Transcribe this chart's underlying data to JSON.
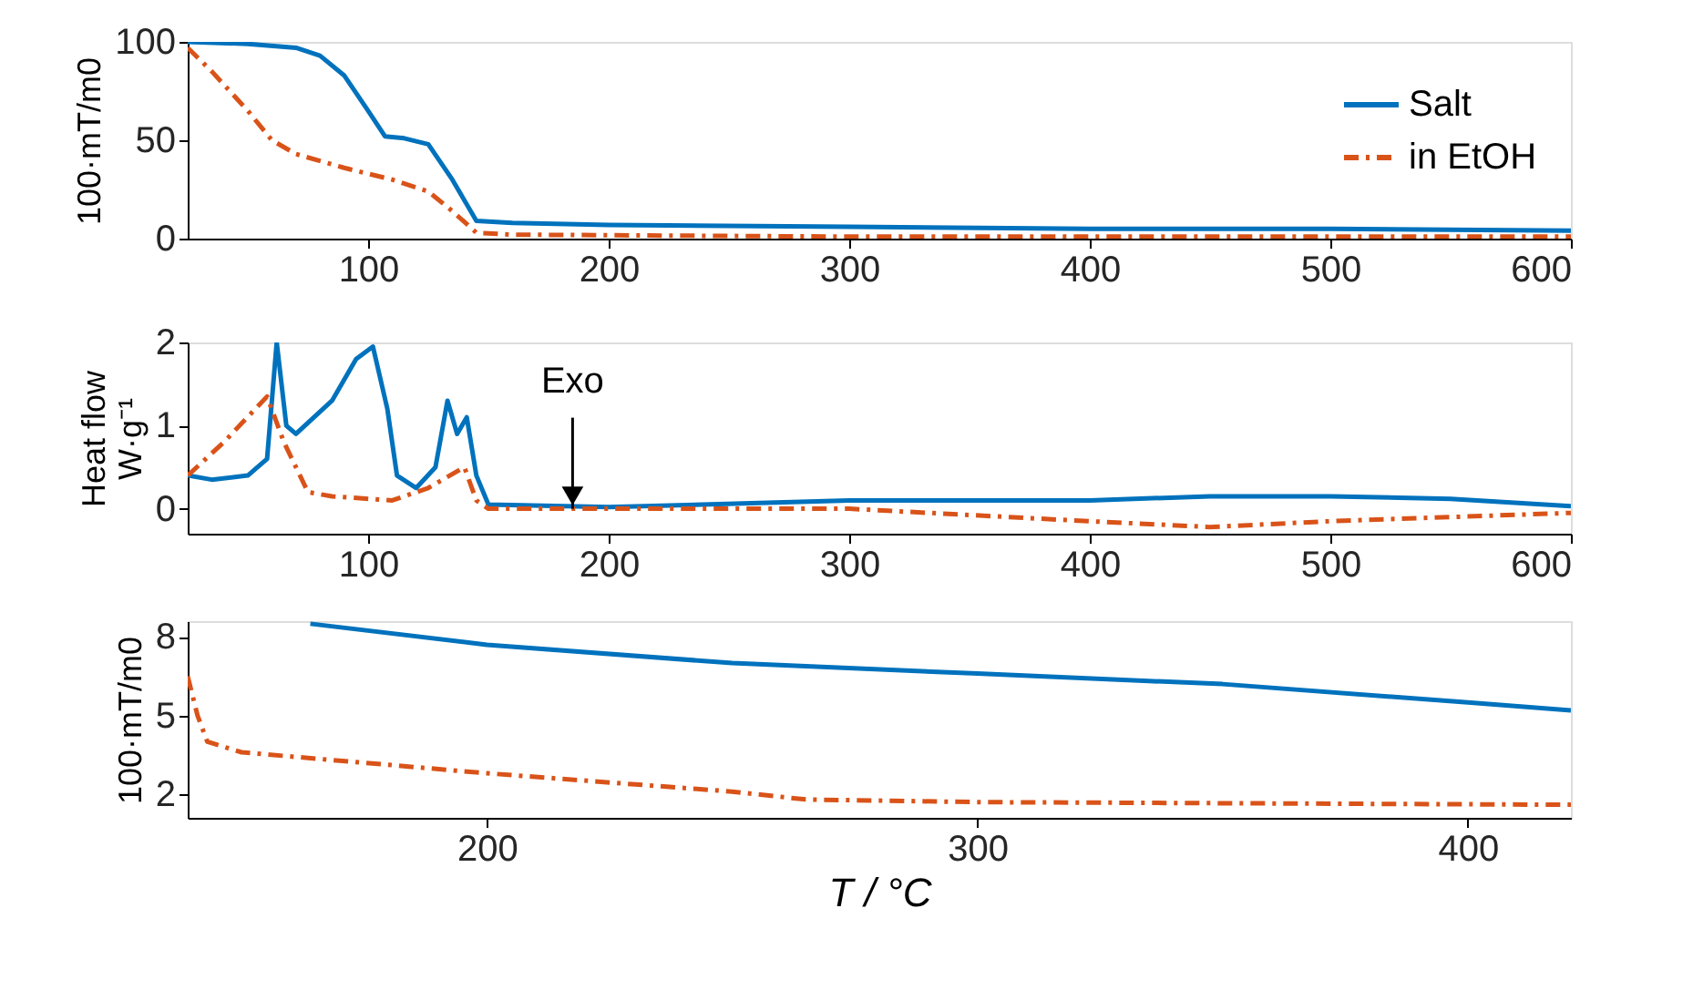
{
  "chart_data": [
    {
      "type": "line",
      "ylabel": "100·mT/m0",
      "xlim": [
        25,
        600
      ],
      "xticks": [
        100,
        200,
        300,
        400,
        500,
        600
      ],
      "ylim": [
        0,
        100
      ],
      "yticks": [
        0,
        50,
        100
      ],
      "grid": false,
      "legend": "top right",
      "series": [
        {
          "name": "Salt",
          "color": "#0072bd",
          "line_style": "solid",
          "x": [
            25,
            50,
            70,
            80,
            90,
            100,
            107,
            115,
            125,
            135,
            145,
            160,
            200,
            300,
            400,
            500,
            600
          ],
          "values": [
            100,
            99,
            97,
            93,
            83,
            65,
            52,
            51,
            48,
            30,
            9,
            8,
            7,
            6,
            5,
            5,
            4
          ]
        },
        {
          "name": "in EtOH",
          "color": "#d95319",
          "line_style": "dashed",
          "x": [
            25,
            35,
            50,
            60,
            70,
            90,
            110,
            125,
            135,
            145,
            160,
            300,
            600
          ],
          "values": [
            97,
            85,
            65,
            50,
            43,
            36,
            30,
            24,
            14,
            3,
            2,
            1,
            1
          ]
        }
      ]
    },
    {
      "type": "line",
      "ylabel": "Heat flow\nW·g⁻¹",
      "xlim": [
        25,
        600
      ],
      "xticks": [
        100,
        200,
        300,
        400,
        500,
        600
      ],
      "ylim": [
        -0.3,
        2
      ],
      "yticks": [
        0,
        1,
        2
      ],
      "grid": false,
      "annotations": [
        {
          "text": "Exo",
          "x": 185,
          "y": 0
        }
      ],
      "series": [
        {
          "color": "#0072bd",
          "line_style": "solid",
          "x": [
            25,
            35,
            50,
            58,
            62,
            66,
            70,
            85,
            95,
            102,
            108,
            112,
            120,
            128,
            133,
            137,
            141,
            145,
            150,
            200,
            300,
            400,
            450,
            500,
            550,
            600
          ],
          "values": [
            0.4,
            0.35,
            0.4,
            0.6,
            2.0,
            1.0,
            0.9,
            1.3,
            1.8,
            1.95,
            1.2,
            0.4,
            0.25,
            0.5,
            1.3,
            0.9,
            1.1,
            0.4,
            0.05,
            0.02,
            0.1,
            0.1,
            0.15,
            0.15,
            0.12,
            0.03
          ]
        },
        {
          "color": "#d95319",
          "line_style": "dashed",
          "x": [
            25,
            40,
            58,
            65,
            75,
            85,
            110,
            125,
            140,
            145,
            150,
            300,
            400,
            450,
            500,
            550,
            600
          ],
          "values": [
            0.4,
            0.8,
            1.35,
            0.8,
            0.2,
            0.15,
            0.1,
            0.25,
            0.5,
            0.1,
            0.0,
            0.0,
            -0.15,
            -0.22,
            -0.15,
            -0.1,
            -0.05
          ]
        }
      ]
    },
    {
      "type": "line",
      "ylabel": "100·mT/m0",
      "xlabel": "T / °C",
      "xlim": [
        139,
        421
      ],
      "xticks": [
        200,
        300,
        400
      ],
      "ylim": [
        1.1,
        8.6
      ],
      "yticks": [
        2,
        5,
        8
      ],
      "grid": false,
      "series": [
        {
          "color": "#0072bd",
          "line_style": "solid",
          "x": [
            164,
            200,
            250,
            300,
            350,
            400,
            421
          ],
          "values": [
            8.5,
            7.7,
            7.0,
            6.6,
            6.2,
            5.5,
            5.2
          ]
        },
        {
          "color": "#d95319",
          "line_style": "dashed",
          "x": [
            139,
            141,
            143,
            150,
            200,
            250,
            265,
            300,
            421
          ],
          "values": [
            6.5,
            5.0,
            4.0,
            3.6,
            2.8,
            2.1,
            1.8,
            1.7,
            1.6
          ]
        }
      ]
    }
  ]
}
